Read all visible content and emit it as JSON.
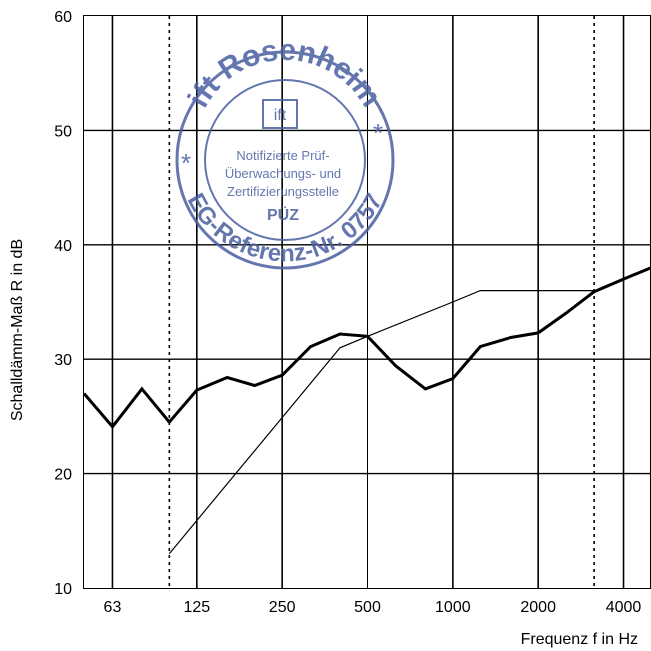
{
  "chart_data": {
    "type": "line",
    "xlabel": "Frequenz f in Hz",
    "ylabel": "Schalldämm-Maß R in dB",
    "x_scale": "log",
    "ylim": [
      10,
      60
    ],
    "y_ticks": [
      10,
      20,
      30,
      40,
      50,
      60
    ],
    "x_ticks": [
      63,
      125,
      250,
      500,
      1000,
      2000,
      4000
    ],
    "x_tick_labels": [
      "63",
      "125",
      "250",
      "500",
      "1000",
      "2000",
      "4000"
    ],
    "grid": true,
    "dotted_markers": [
      100,
      3150
    ],
    "series": [
      {
        "style": "thick",
        "x": [
          50,
          63,
          80,
          100,
          125,
          160,
          200,
          250,
          315,
          400,
          500,
          630,
          800,
          1000,
          1250,
          1600,
          2000,
          2500,
          3150,
          4000,
          5000
        ],
        "y": [
          27.0,
          24.1,
          27.4,
          24.5,
          27.3,
          28.4,
          27.7,
          28.6,
          31.1,
          32.2,
          32.0,
          29.4,
          27.4,
          28.3,
          31.1,
          31.9,
          32.3,
          34.0,
          35.9,
          37.0,
          38.0
        ]
      },
      {
        "style": "thin",
        "x": [
          100,
          400,
          500,
          1000,
          1250,
          1600,
          2000,
          2500,
          3150
        ],
        "y": [
          13.0,
          31.0,
          32.0,
          35.0,
          36.0,
          36.0,
          36.0,
          36.0,
          36.0
        ]
      }
    ]
  },
  "stamp": {
    "outer_text": "ift Rosenheim",
    "bottom_text": "EG-Referenz-Nr. 0757",
    "logo": "ift",
    "lines": [
      "Notifizierte Prüf-",
      "Überwachungs- und",
      "Zertifizierungsstelle"
    ],
    "code": "PÜZ",
    "star": "*",
    "color": "#4a5fa0"
  }
}
